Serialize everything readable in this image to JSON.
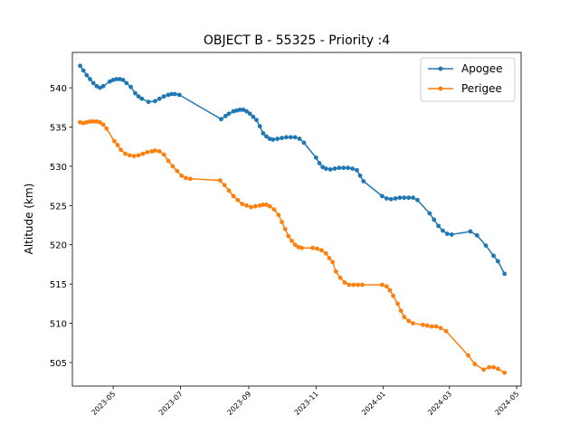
{
  "chart_data": {
    "type": "line",
    "title": "OBJECT B - 55325 - Priority :4",
    "xlabel": "",
    "ylabel": "Altitude (km)",
    "xlim": [
      "2023-03-25",
      "2024-05-05"
    ],
    "ylim": [
      502.0,
      544.5
    ],
    "x_ticks": [
      "2023-05",
      "2023-07",
      "2023-09",
      "2023-11",
      "2024-01",
      "2024-03",
      "2024-05"
    ],
    "y_ticks": [
      505,
      510,
      515,
      520,
      525,
      530,
      535,
      540
    ],
    "grid": false,
    "legend_position": "top-right",
    "series": [
      {
        "name": "Apogee",
        "color": "#1f77b4",
        "points": [
          [
            "2023-04-01",
            542.8
          ],
          [
            "2023-04-04",
            542.2
          ],
          [
            "2023-04-07",
            541.6
          ],
          [
            "2023-04-10",
            541.1
          ],
          [
            "2023-04-13",
            540.6
          ],
          [
            "2023-04-16",
            540.2
          ],
          [
            "2023-04-19",
            540.0
          ],
          [
            "2023-04-22",
            540.2
          ],
          [
            "2023-04-28",
            540.8
          ],
          [
            "2023-05-01",
            541.0
          ],
          [
            "2023-05-04",
            541.1
          ],
          [
            "2023-05-07",
            541.1
          ],
          [
            "2023-05-10",
            541.0
          ],
          [
            "2023-05-13",
            540.6
          ],
          [
            "2023-05-17",
            540.1
          ],
          [
            "2023-05-21",
            539.3
          ],
          [
            "2023-05-24",
            538.9
          ],
          [
            "2023-05-27",
            538.6
          ],
          [
            "2023-06-02",
            538.2
          ],
          [
            "2023-06-08",
            538.3
          ],
          [
            "2023-06-12",
            538.6
          ],
          [
            "2023-06-16",
            538.9
          ],
          [
            "2023-06-20",
            539.1
          ],
          [
            "2023-06-23",
            539.2
          ],
          [
            "2023-06-26",
            539.2
          ],
          [
            "2023-06-30",
            539.1
          ],
          [
            "2023-08-07",
            536.0
          ],
          [
            "2023-08-11",
            536.4
          ],
          [
            "2023-08-14",
            536.7
          ],
          [
            "2023-08-18",
            537.0
          ],
          [
            "2023-08-21",
            537.1
          ],
          [
            "2023-08-24",
            537.2
          ],
          [
            "2023-08-27",
            537.2
          ],
          [
            "2023-08-30",
            537.0
          ],
          [
            "2023-09-02",
            536.7
          ],
          [
            "2023-09-05",
            536.3
          ],
          [
            "2023-09-08",
            535.9
          ],
          [
            "2023-09-11",
            535.1
          ],
          [
            "2023-09-14",
            534.2
          ],
          [
            "2023-09-17",
            533.8
          ],
          [
            "2023-09-20",
            533.5
          ],
          [
            "2023-09-23",
            533.4
          ],
          [
            "2023-09-27",
            533.5
          ],
          [
            "2023-10-01",
            533.6
          ],
          [
            "2023-10-05",
            533.7
          ],
          [
            "2023-10-09",
            533.7
          ],
          [
            "2023-10-13",
            533.7
          ],
          [
            "2023-10-17",
            533.5
          ],
          [
            "2023-10-21",
            533.0
          ],
          [
            "2023-11-01",
            531.1
          ],
          [
            "2023-11-04",
            530.4
          ],
          [
            "2023-11-07",
            529.9
          ],
          [
            "2023-11-10",
            529.7
          ],
          [
            "2023-11-14",
            529.6
          ],
          [
            "2023-11-18",
            529.7
          ],
          [
            "2023-11-22",
            529.8
          ],
          [
            "2023-11-26",
            529.8
          ],
          [
            "2023-11-30",
            529.8
          ],
          [
            "2023-12-04",
            529.7
          ],
          [
            "2023-12-08",
            529.5
          ],
          [
            "2023-12-11",
            528.8
          ],
          [
            "2023-12-14",
            528.1
          ],
          [
            "2023-12-31",
            526.2
          ],
          [
            "2024-01-04",
            525.9
          ],
          [
            "2024-01-08",
            525.8
          ],
          [
            "2024-01-12",
            525.9
          ],
          [
            "2024-01-16",
            526.0
          ],
          [
            "2024-01-20",
            526.0
          ],
          [
            "2024-01-24",
            526.0
          ],
          [
            "2024-01-28",
            526.0
          ],
          [
            "2024-02-01",
            525.7
          ],
          [
            "2024-02-12",
            524.0
          ],
          [
            "2024-02-16",
            523.2
          ],
          [
            "2024-02-20",
            522.4
          ],
          [
            "2024-02-24",
            521.8
          ],
          [
            "2024-02-28",
            521.4
          ],
          [
            "2024-03-03",
            521.3
          ],
          [
            "2024-03-20",
            521.7
          ],
          [
            "2024-03-26",
            521.2
          ],
          [
            "2024-04-03",
            519.9
          ],
          [
            "2024-04-10",
            518.6
          ],
          [
            "2024-04-14",
            517.9
          ],
          [
            "2024-04-20",
            516.3
          ]
        ]
      },
      {
        "name": "Perigee",
        "color": "#ff7f0e",
        "points": [
          [
            "2023-04-01",
            535.6
          ],
          [
            "2023-04-04",
            535.5
          ],
          [
            "2023-04-07",
            535.6
          ],
          [
            "2023-04-10",
            535.7
          ],
          [
            "2023-04-13",
            535.7
          ],
          [
            "2023-04-16",
            535.7
          ],
          [
            "2023-04-19",
            535.6
          ],
          [
            "2023-04-22",
            535.3
          ],
          [
            "2023-04-25",
            534.8
          ],
          [
            "2023-05-02",
            533.2
          ],
          [
            "2023-05-05",
            532.7
          ],
          [
            "2023-05-08",
            532.1
          ],
          [
            "2023-05-12",
            531.6
          ],
          [
            "2023-05-16",
            531.4
          ],
          [
            "2023-05-20",
            531.3
          ],
          [
            "2023-05-24",
            531.4
          ],
          [
            "2023-05-28",
            531.6
          ],
          [
            "2023-06-01",
            531.8
          ],
          [
            "2023-06-05",
            531.9
          ],
          [
            "2023-06-08",
            532.0
          ],
          [
            "2023-06-12",
            531.9
          ],
          [
            "2023-06-16",
            531.5
          ],
          [
            "2023-06-20",
            530.7
          ],
          [
            "2023-06-24",
            530.0
          ],
          [
            "2023-06-28",
            529.4
          ],
          [
            "2023-07-02",
            528.8
          ],
          [
            "2023-07-06",
            528.5
          ],
          [
            "2023-07-10",
            528.4
          ],
          [
            "2023-08-06",
            528.2
          ],
          [
            "2023-08-10",
            527.6
          ],
          [
            "2023-08-14",
            526.9
          ],
          [
            "2023-08-18",
            526.2
          ],
          [
            "2023-08-22",
            525.7
          ],
          [
            "2023-08-26",
            525.2
          ],
          [
            "2023-08-30",
            525.0
          ],
          [
            "2023-09-03",
            524.8
          ],
          [
            "2023-09-07",
            524.9
          ],
          [
            "2023-09-11",
            525.0
          ],
          [
            "2023-09-14",
            525.1
          ],
          [
            "2023-09-17",
            525.1
          ],
          [
            "2023-09-20",
            524.9
          ],
          [
            "2023-09-24",
            524.5
          ],
          [
            "2023-09-28",
            523.8
          ],
          [
            "2023-10-01",
            522.9
          ],
          [
            "2023-10-04",
            522.0
          ],
          [
            "2023-10-07",
            521.1
          ],
          [
            "2023-10-10",
            520.5
          ],
          [
            "2023-10-13",
            520.0
          ],
          [
            "2023-10-16",
            519.7
          ],
          [
            "2023-10-19",
            519.6
          ],
          [
            "2023-10-29",
            519.6
          ],
          [
            "2023-11-02",
            519.5
          ],
          [
            "2023-11-06",
            519.3
          ],
          [
            "2023-11-10",
            518.9
          ],
          [
            "2023-11-13",
            518.3
          ],
          [
            "2023-11-16",
            517.8
          ],
          [
            "2023-11-19",
            516.6
          ],
          [
            "2023-11-23",
            515.8
          ],
          [
            "2023-11-27",
            515.2
          ],
          [
            "2023-12-01",
            514.9
          ],
          [
            "2023-12-05",
            514.9
          ],
          [
            "2023-12-09",
            514.9
          ],
          [
            "2023-12-13",
            514.9
          ],
          [
            "2023-12-31",
            514.9
          ],
          [
            "2024-01-04",
            514.7
          ],
          [
            "2024-01-07",
            514.2
          ],
          [
            "2024-01-10",
            513.5
          ],
          [
            "2024-01-14",
            512.5
          ],
          [
            "2024-01-17",
            511.6
          ],
          [
            "2024-01-20",
            510.8
          ],
          [
            "2024-01-24",
            510.3
          ],
          [
            "2024-01-28",
            510.0
          ],
          [
            "2024-02-06",
            509.8
          ],
          [
            "2024-02-10",
            509.7
          ],
          [
            "2024-02-14",
            509.6
          ],
          [
            "2024-02-18",
            509.6
          ],
          [
            "2024-02-22",
            509.4
          ],
          [
            "2024-02-27",
            509.0
          ],
          [
            "2024-03-18",
            505.9
          ],
          [
            "2024-03-24",
            504.8
          ],
          [
            "2024-04-01",
            504.1
          ],
          [
            "2024-04-06",
            504.4
          ],
          [
            "2024-04-10",
            504.4
          ],
          [
            "2024-04-14",
            504.2
          ],
          [
            "2024-04-20",
            503.7
          ]
        ]
      }
    ]
  }
}
